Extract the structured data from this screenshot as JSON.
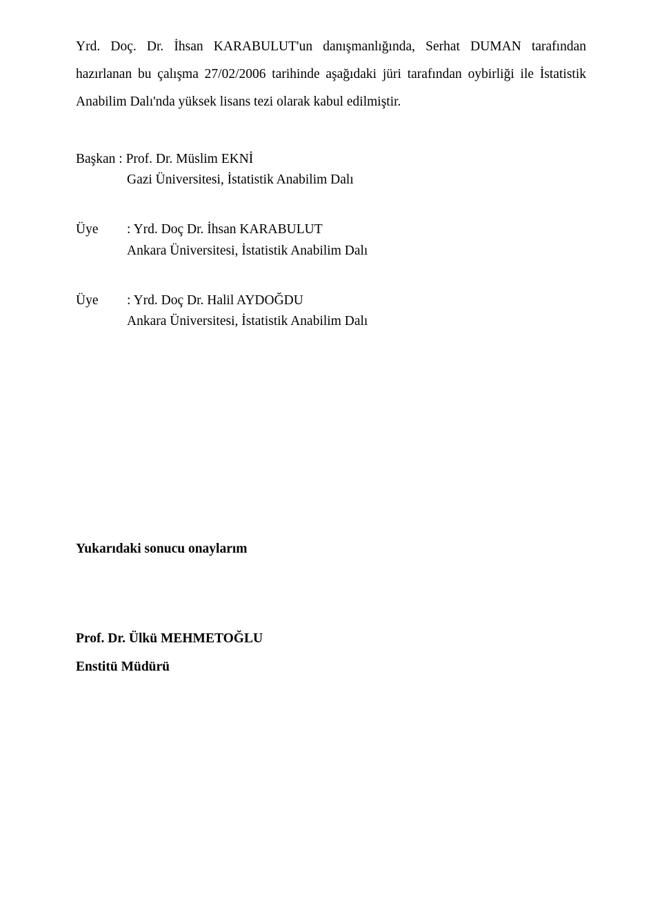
{
  "colors": {
    "text": "#000000",
    "background": "#ffffff"
  },
  "typography": {
    "font_family": "Times New Roman",
    "body_fontsize_pt": 14
  },
  "intro": {
    "text": "Yrd. Doç. Dr. İhsan KARABULUT'un danışmanlığında, Serhat DUMAN tarafından hazırlanan bu çalışma 27/02/2006 tarihinde aşağıdaki jüri tarafından oybirliği ile İstatistik Anabilim Dalı'nda yüksek lisans tezi olarak kabul edilmiştir."
  },
  "committee": {
    "baskan": {
      "label": "Başkan",
      "name": ": Prof. Dr. Müslim EKNİ",
      "affiliation": "Gazi Üniversitesi, İstatistik Anabilim Dalı"
    },
    "uye1": {
      "label": "Üye",
      "name": ": Yrd. Doç Dr. İhsan KARABULUT",
      "affiliation": "Ankara Üniversitesi, İstatistik Anabilim Dalı"
    },
    "uye2": {
      "label": "Üye",
      "name": ": Yrd. Doç Dr. Halil AYDOĞDU",
      "affiliation": "Ankara Üniversitesi, İstatistik Anabilim Dalı"
    }
  },
  "approval": {
    "line": "Yukarıdaki sonucu onaylarım",
    "prof": "Prof. Dr. Ülkü MEHMETOĞLU",
    "title": "Enstitü Müdürü"
  }
}
